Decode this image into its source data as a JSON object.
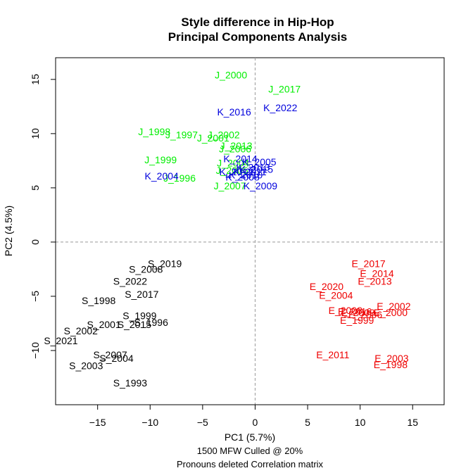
{
  "chart_data": {
    "type": "scatter",
    "title": [
      "Style difference in Hip-Hop",
      "Principal Components Analysis"
    ],
    "xlabel": "PC1 (5.7%)",
    "ylabel": "PC2 (4.5%)",
    "caption": [
      "1500 MFW  Culled @ 20%",
      "Pronouns deleted Correlation matrix"
    ],
    "xlim": [
      -19,
      18
    ],
    "ylim": [
      -15,
      17
    ],
    "xticks": [
      -15,
      -10,
      -5,
      0,
      5,
      10,
      15
    ],
    "yticks": [
      -10,
      -5,
      0,
      5,
      10,
      15
    ],
    "reference_lines": {
      "x": 0,
      "y": 0,
      "style": "dashed"
    },
    "colors": {
      "J": "#00ee00",
      "K": "#0000dd",
      "S": "#000000",
      "E": "#ee0000"
    },
    "points": [
      {
        "label": "J_2000",
        "group": "J",
        "x": -2.3,
        "y": 15.4
      },
      {
        "label": "J_2017",
        "group": "J",
        "x": 2.8,
        "y": 14.1
      },
      {
        "label": "J_1998",
        "group": "J",
        "x": -9.6,
        "y": 10.2
      },
      {
        "label": "J_1997",
        "group": "J",
        "x": -7.0,
        "y": 9.9
      },
      {
        "label": "J_2002",
        "group": "J",
        "x": -3.0,
        "y": 9.9
      },
      {
        "label": "J_2001",
        "group": "J",
        "x": -4.0,
        "y": 9.6
      },
      {
        "label": "J_2013",
        "group": "J",
        "x": -1.8,
        "y": 8.9
      },
      {
        "label": "J_2006",
        "group": "J",
        "x": -1.9,
        "y": 8.6
      },
      {
        "label": "J_1999",
        "group": "J",
        "x": -9.0,
        "y": 7.6
      },
      {
        "label": "J_1996",
        "group": "J",
        "x": -7.2,
        "y": 5.9
      },
      {
        "label": "J_2007",
        "group": "J",
        "x": -2.4,
        "y": 5.2
      },
      {
        "label": "J_2004",
        "group": "J",
        "x": -2.1,
        "y": 7.3
      },
      {
        "label": "J_2005",
        "group": "J",
        "x": -2.2,
        "y": 6.6
      },
      {
        "label": "K_2016",
        "group": "K",
        "x": -2.0,
        "y": 12.0
      },
      {
        "label": "K_2022",
        "group": "K",
        "x": 2.4,
        "y": 12.4
      },
      {
        "label": "K_2014",
        "group": "K",
        "x": -1.4,
        "y": 7.7
      },
      {
        "label": "K_2005",
        "group": "K",
        "x": 0.4,
        "y": 7.4
      },
      {
        "label": "K_2013",
        "group": "K",
        "x": -0.2,
        "y": 6.9
      },
      {
        "label": "K_2015",
        "group": "K",
        "x": 0.1,
        "y": 6.7
      },
      {
        "label": "K_2011",
        "group": "K",
        "x": -0.5,
        "y": 6.5
      },
      {
        "label": "K_2012",
        "group": "K",
        "x": -1.8,
        "y": 6.5
      },
      {
        "label": "K_2010",
        "group": "K",
        "x": -0.9,
        "y": 6.2
      },
      {
        "label": "K_2008",
        "group": "K",
        "x": -1.2,
        "y": 6.0
      },
      {
        "label": "K_2004",
        "group": "K",
        "x": -8.9,
        "y": 6.1
      },
      {
        "label": "K_2009",
        "group": "K",
        "x": 0.5,
        "y": 5.2
      },
      {
        "label": "S_2019",
        "group": "S",
        "x": -8.6,
        "y": -2.0
      },
      {
        "label": "S_2008",
        "group": "S",
        "x": -10.4,
        "y": -2.5
      },
      {
        "label": "S_2022",
        "group": "S",
        "x": -11.9,
        "y": -3.6
      },
      {
        "label": "S_2017",
        "group": "S",
        "x": -10.8,
        "y": -4.8
      },
      {
        "label": "S_1998",
        "group": "S",
        "x": -14.9,
        "y": -5.4
      },
      {
        "label": "S_1999",
        "group": "S",
        "x": -11.0,
        "y": -6.8
      },
      {
        "label": "S_1996",
        "group": "S",
        "x": -9.9,
        "y": -7.4
      },
      {
        "label": "S_2015",
        "group": "S",
        "x": -11.5,
        "y": -7.6
      },
      {
        "label": "S_2001",
        "group": "S",
        "x": -14.4,
        "y": -7.6
      },
      {
        "label": "S_2002",
        "group": "S",
        "x": -16.6,
        "y": -8.2
      },
      {
        "label": "S_2021",
        "group": "S",
        "x": -18.5,
        "y": -9.1
      },
      {
        "label": "S_2007",
        "group": "S",
        "x": -13.8,
        "y": -10.4
      },
      {
        "label": "S_2004",
        "group": "S",
        "x": -13.2,
        "y": -10.7
      },
      {
        "label": "S_2003",
        "group": "S",
        "x": -16.1,
        "y": -11.4
      },
      {
        "label": "S_1993",
        "group": "S",
        "x": -11.9,
        "y": -13.0
      },
      {
        "label": "E_2017",
        "group": "E",
        "x": 10.8,
        "y": -2.0
      },
      {
        "label": "E_2014",
        "group": "E",
        "x": 11.6,
        "y": -2.9
      },
      {
        "label": "E_2013",
        "group": "E",
        "x": 11.4,
        "y": -3.6
      },
      {
        "label": "E_2020",
        "group": "E",
        "x": 6.8,
        "y": -4.1
      },
      {
        "label": "E_2004",
        "group": "E",
        "x": 7.7,
        "y": -4.9
      },
      {
        "label": "E_2002",
        "group": "E",
        "x": 13.2,
        "y": -5.9
      },
      {
        "label": "E_2008",
        "group": "E",
        "x": 8.6,
        "y": -6.3
      },
      {
        "label": "E_2016",
        "group": "E",
        "x": 9.5,
        "y": -6.4
      },
      {
        "label": "E_2009",
        "group": "E",
        "x": 9.8,
        "y": -6.5
      },
      {
        "label": "E_2000",
        "group": "E",
        "x": 12.9,
        "y": -6.5
      },
      {
        "label": "E_2006",
        "group": "E",
        "x": 10.5,
        "y": -6.7
      },
      {
        "label": "E_1999",
        "group": "E",
        "x": 9.7,
        "y": -7.2
      },
      {
        "label": "E_2011",
        "group": "E",
        "x": 7.4,
        "y": -10.4
      },
      {
        "label": "E_2003",
        "group": "E",
        "x": 13.0,
        "y": -10.7
      },
      {
        "label": "E_1998",
        "group": "E",
        "x": 12.9,
        "y": -11.3
      }
    ]
  }
}
